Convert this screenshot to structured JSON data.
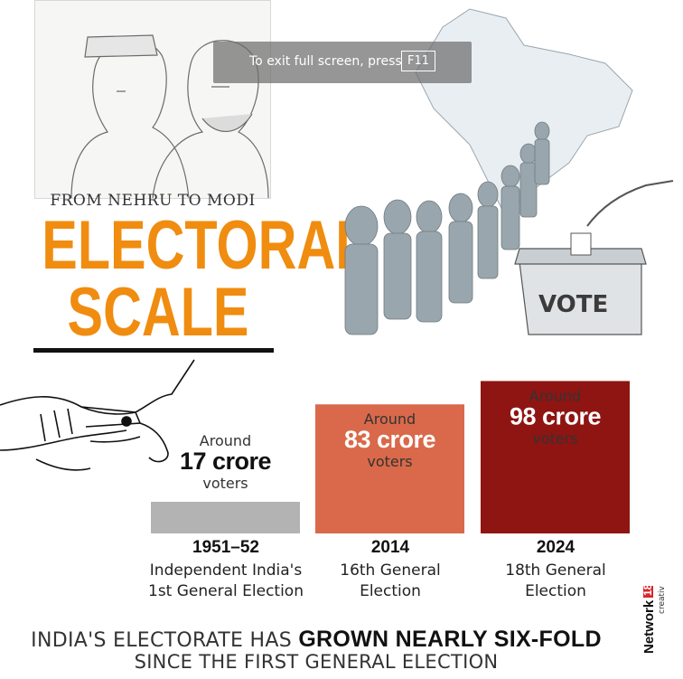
{
  "header": {
    "subtitle": "FROM NEHRU TO MODI",
    "title_line1": "ELECTORAL",
    "title_line2": "SCALE"
  },
  "toast": {
    "text": "To exit full screen, press",
    "key": "F11"
  },
  "illustration": {
    "ballot_box_label": "VOTE"
  },
  "colors": {
    "accent": "#f08c0f",
    "bar_1951": "#b3b3b3",
    "bar_2014": "#d9694a",
    "bar_2024": "#8e1512"
  },
  "chart_data": {
    "type": "bar",
    "categories": [
      "1951-52",
      "2014",
      "2024"
    ],
    "values": [
      17,
      83,
      98
    ],
    "value_labels": [
      {
        "prefix": "Around",
        "value": "17 crore",
        "suffix": "voters"
      },
      {
        "prefix": "Around",
        "value": "83 crore",
        "suffix": "voters"
      },
      {
        "prefix": "Around",
        "value": "98 crore",
        "suffix": "voters"
      }
    ],
    "descriptions": [
      [
        "Independent India's",
        "1st General Election"
      ],
      [
        "16th General",
        "Election"
      ],
      [
        "18th General",
        "Election"
      ]
    ]
  },
  "footer": {
    "line1_prefix": "INDIA'S ELECTORATE HAS",
    "line1_bold": "GROWN NEARLY SIX-FOLD",
    "line2": "SINCE THE FIRST GENERAL ELECTION"
  },
  "logo": {
    "network": "Network",
    "number": "18",
    "sub": "creative"
  }
}
